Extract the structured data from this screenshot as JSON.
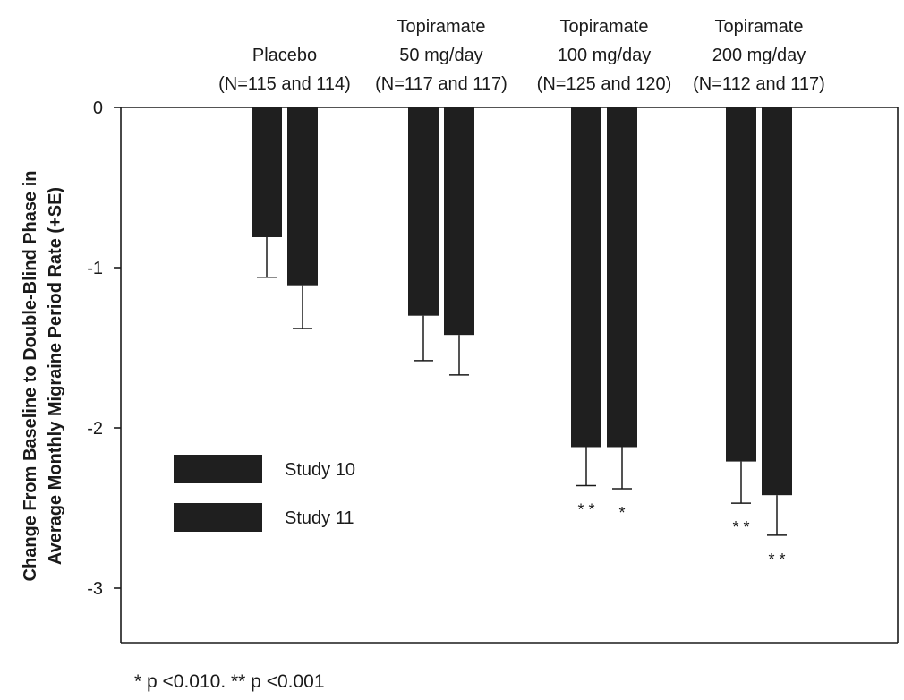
{
  "chart_data": {
    "type": "bar",
    "orientation": "vertical",
    "bars_hang_from_zero": true,
    "error_bars": "+SE, drawn downward",
    "ylabel": "Change From Baseline to Double-Blind Phase in Average Monthly Migraine Period Rate (+SE)",
    "ylabel_lines": [
      "Change From Baseline to Double-Blind Phase in",
      "Average Monthly Migraine Period Rate (+SE)"
    ],
    "ylim": [
      -3.35,
      0
    ],
    "yticks": [
      0,
      -1,
      -2,
      -3
    ],
    "ytick_labels": [
      "0",
      "-1",
      "-2",
      "-3"
    ],
    "groups": [
      {
        "lines": [
          "Placebo",
          "(N=115 and 114)"
        ]
      },
      {
        "lines": [
          "Topiramate",
          "50 mg/day",
          "(N=117 and 117)"
        ]
      },
      {
        "lines": [
          "Topiramate",
          "100 mg/day",
          "(N=125 and 120)"
        ]
      },
      {
        "lines": [
          "Topiramate",
          "200 mg/day",
          "(N=112 and 117)"
        ]
      }
    ],
    "series": [
      {
        "name": "Study 10",
        "values": [
          -0.81,
          -1.3,
          -2.12,
          -2.21
        ],
        "se": [
          0.25,
          0.28,
          0.24,
          0.26
        ],
        "markers": [
          "",
          "",
          "* *",
          "* *"
        ]
      },
      {
        "name": "Study 11",
        "values": [
          -1.11,
          -1.42,
          -2.12,
          -2.42
        ],
        "se": [
          0.27,
          0.25,
          0.26,
          0.25
        ],
        "markers": [
          "",
          "",
          "*",
          "* *"
        ]
      }
    ],
    "legend_position": "lower-left inside",
    "bar_color": "#1f1f1f",
    "grid": false
  },
  "footnote": "* p <0.010. ** p <0.001"
}
